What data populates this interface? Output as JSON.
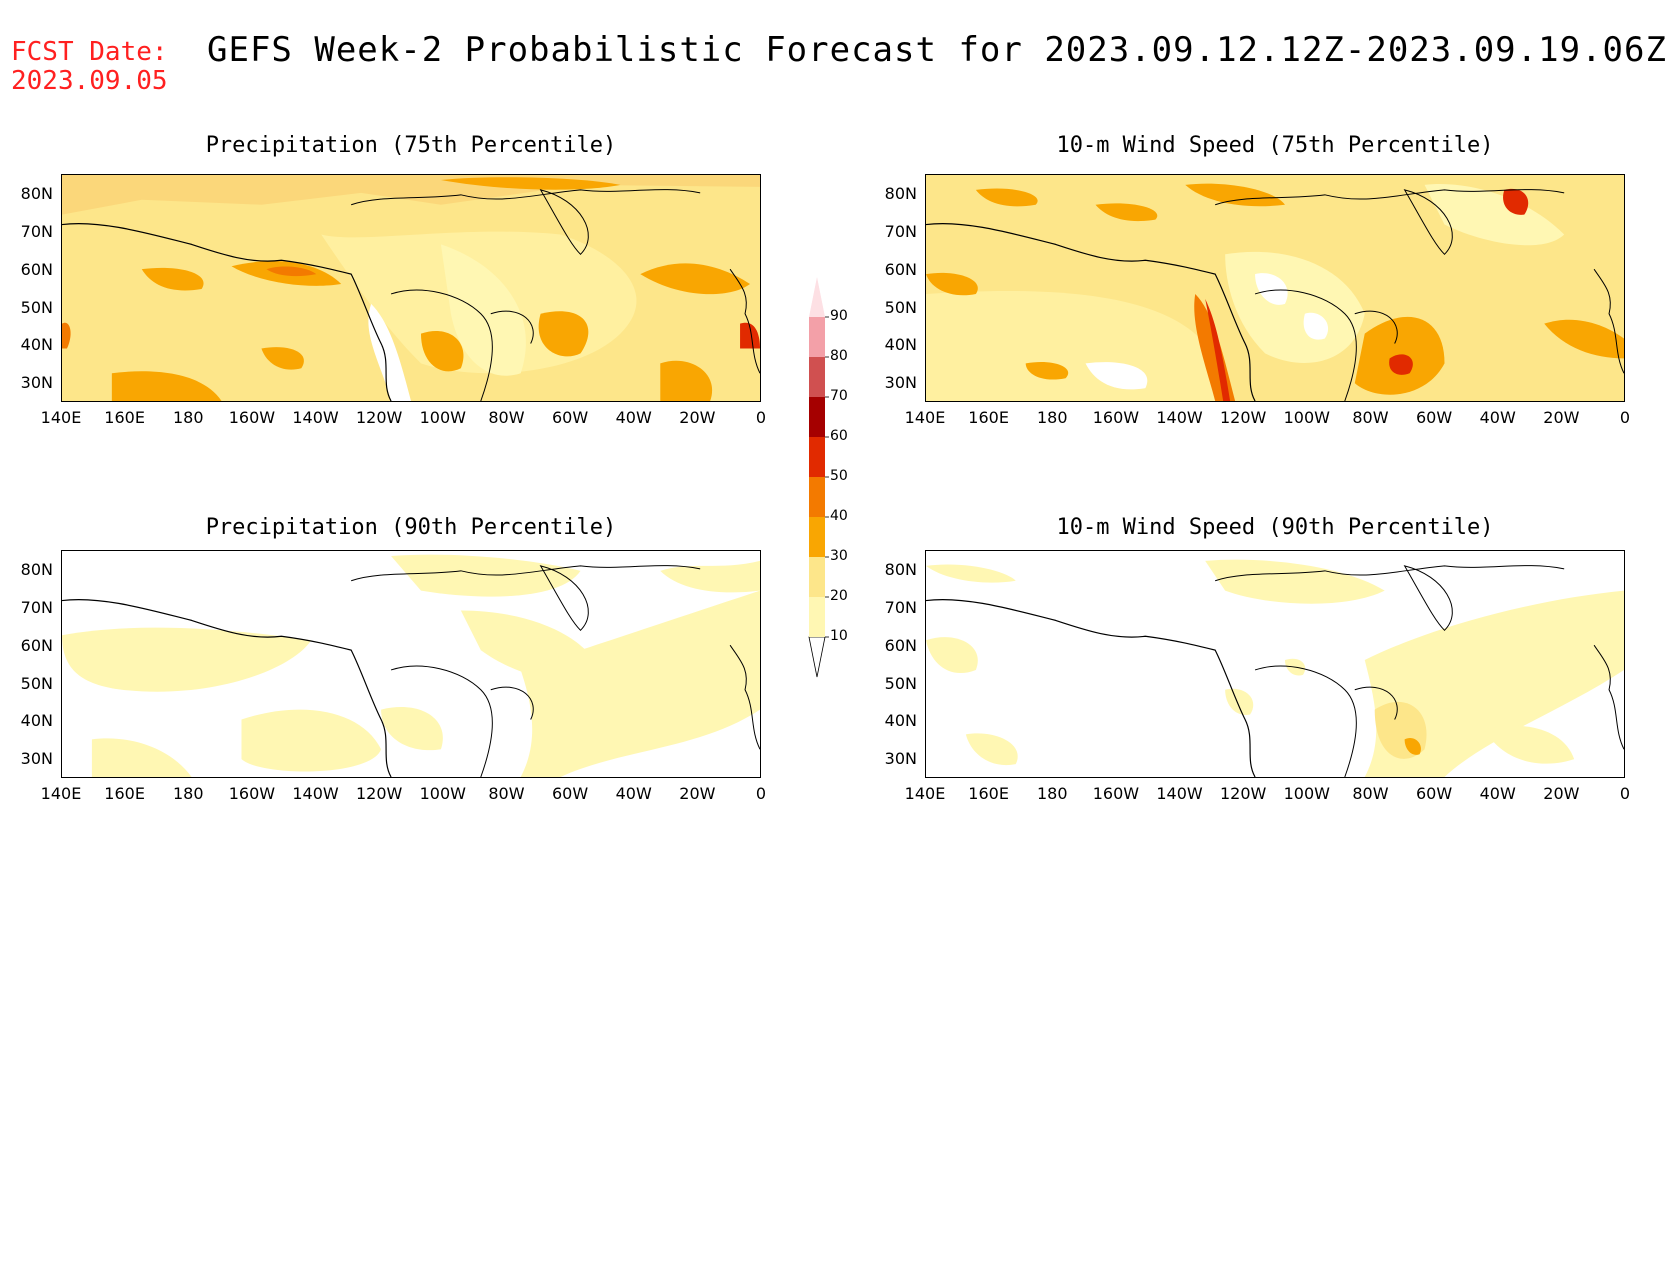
{
  "header": {
    "fcst_line1": "FCST Date:",
    "fcst_line2": "2023.09.05",
    "title": "GEFS Week-2 Probabilistic Forecast for 2023.09.12.12Z-2023.09.19.06Z"
  },
  "panels": [
    {
      "id": "precip-75",
      "title": "Precipitation (75th Percentile)"
    },
    {
      "id": "wind-75",
      "title": "10-m Wind Speed (75th Percentile)"
    },
    {
      "id": "precip-90",
      "title": "Precipitation (90th Percentile)"
    },
    {
      "id": "wind-90",
      "title": "10-m Wind Speed (90th Percentile)"
    }
  ],
  "axes": {
    "lat_labels": [
      "80N",
      "70N",
      "60N",
      "50N",
      "40N",
      "30N"
    ],
    "lon_labels": [
      "140E",
      "160E",
      "180",
      "160W",
      "140W",
      "120W",
      "100W",
      "80W",
      "60W",
      "40W",
      "20W",
      "0"
    ]
  },
  "colorbar": {
    "levels": [
      "10",
      "20",
      "30",
      "40",
      "50",
      "60",
      "70",
      "80",
      "90"
    ],
    "colors": [
      "#fff7b3",
      "#fde68a",
      "#f9a602",
      "#f37a00",
      "#e12a00",
      "#a50000",
      "#d05050",
      "#f3a0a8",
      "#fde0e4"
    ]
  }
}
